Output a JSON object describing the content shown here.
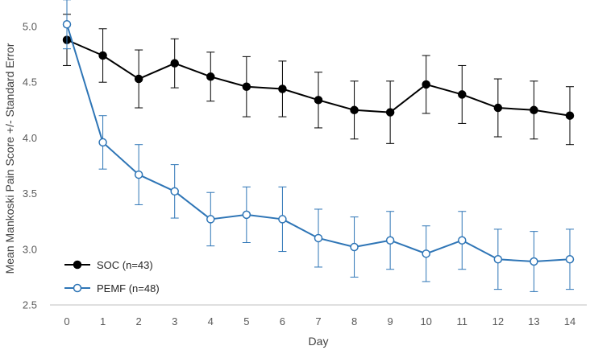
{
  "chart_data": {
    "type": "line",
    "title": "",
    "xlabel": "Day",
    "ylabel": "Mean Mankoski Pain Score +/- Standard Error",
    "x": [
      0,
      1,
      2,
      3,
      4,
      5,
      6,
      7,
      8,
      9,
      10,
      11,
      12,
      13,
      14
    ],
    "ylim": [
      2.5,
      5.0
    ],
    "yticks": [
      "2.5",
      "3.0",
      "3.5",
      "4.0",
      "4.5",
      "5.0"
    ],
    "grid": false,
    "legend_position": "bottom-left",
    "series": [
      {
        "name": "SOC (n=43)",
        "marker": "filled-circle",
        "color": "#000000",
        "values": [
          4.88,
          4.74,
          4.53,
          4.67,
          4.55,
          4.46,
          4.44,
          4.34,
          4.25,
          4.23,
          4.48,
          4.39,
          4.27,
          4.25,
          4.2
        ],
        "error": [
          0.23,
          0.24,
          0.26,
          0.22,
          0.22,
          0.27,
          0.25,
          0.25,
          0.26,
          0.28,
          0.26,
          0.26,
          0.26,
          0.26,
          0.26
        ]
      },
      {
        "name": "PEMF (n=48)",
        "marker": "open-circle",
        "color": "#2e75b6",
        "values": [
          5.02,
          3.96,
          3.67,
          3.52,
          3.27,
          3.31,
          3.27,
          3.1,
          3.02,
          3.08,
          2.96,
          3.08,
          2.91,
          2.89,
          2.91
        ],
        "error": [
          0.22,
          0.24,
          0.27,
          0.24,
          0.24,
          0.25,
          0.29,
          0.26,
          0.27,
          0.26,
          0.25,
          0.26,
          0.27,
          0.27,
          0.27
        ]
      }
    ]
  }
}
